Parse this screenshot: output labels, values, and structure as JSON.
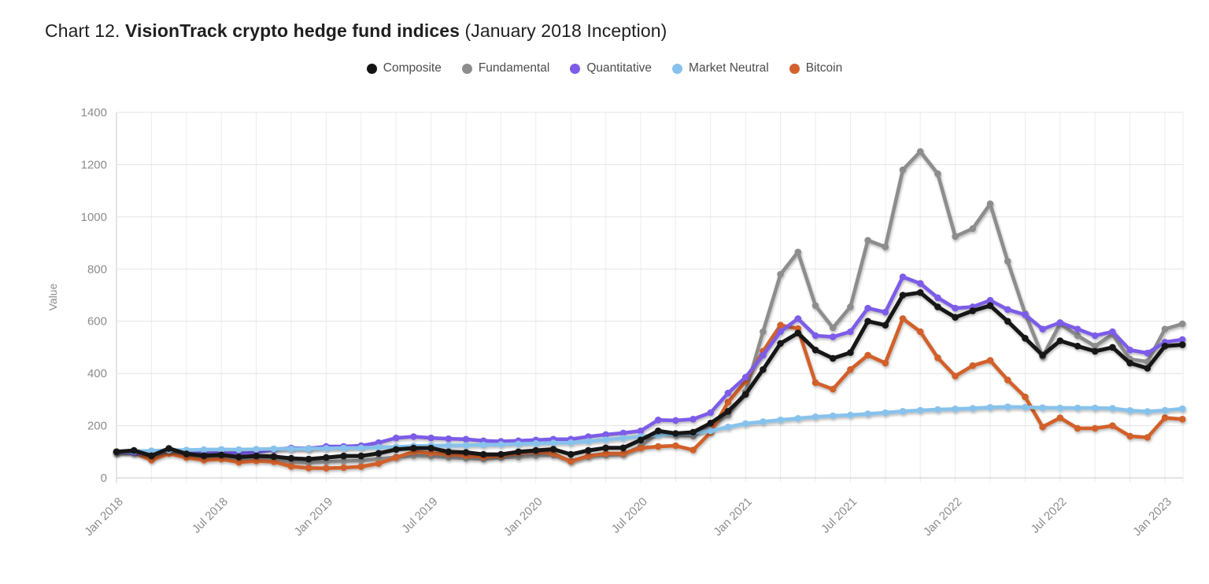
{
  "title": {
    "prefix": "Chart 12. ",
    "main": "VisionTrack crypto hedge fund indices",
    "suffix": " (January 2018 Inception)"
  },
  "chart_data": {
    "type": "line",
    "ylabel": "Value",
    "ylim": [
      0,
      1400
    ],
    "y_ticks": [
      0,
      200,
      400,
      600,
      800,
      1000,
      1200,
      1400
    ],
    "x_tick_labels": [
      "Jan 2018",
      "Jul 2018",
      "Jan 2019",
      "Jul 2019",
      "Jan 2020",
      "Jul 2020",
      "Jan 2021",
      "Jul 2021",
      "Jan 2022",
      "Jul 2022",
      "Jan 2023"
    ],
    "x_tick_every": 6,
    "grid": true,
    "legend_position": "top",
    "markers": true,
    "months": [
      "Jan 2018",
      "Feb 2018",
      "Mar 2018",
      "Apr 2018",
      "May 2018",
      "Jun 2018",
      "Jul 2018",
      "Aug 2018",
      "Sep 2018",
      "Oct 2018",
      "Nov 2018",
      "Dec 2018",
      "Jan 2019",
      "Feb 2019",
      "Mar 2019",
      "Apr 2019",
      "May 2019",
      "Jun 2019",
      "Jul 2019",
      "Aug 2019",
      "Sep 2019",
      "Oct 2019",
      "Nov 2019",
      "Dec 2019",
      "Jan 2020",
      "Feb 2020",
      "Mar 2020",
      "Apr 2020",
      "May 2020",
      "Jun 2020",
      "Jul 2020",
      "Aug 2020",
      "Sep 2020",
      "Oct 2020",
      "Nov 2020",
      "Dec 2020",
      "Jan 2021",
      "Feb 2021",
      "Mar 2021",
      "Apr 2021",
      "May 2021",
      "Jun 2021",
      "Jul 2021",
      "Aug 2021",
      "Sep 2021",
      "Oct 2021",
      "Nov 2021",
      "Dec 2021",
      "Jan 2022",
      "Feb 2022",
      "Mar 2022",
      "Apr 2022",
      "May 2022",
      "Jun 2022",
      "Jul 2022",
      "Aug 2022",
      "Sep 2022",
      "Oct 2022",
      "Nov 2022",
      "Dec 2022",
      "Jan 2023",
      "Feb 2023"
    ],
    "series": [
      {
        "name": "Composite",
        "color": "#141414",
        "values": [
          100,
          105,
          85,
          113,
          92,
          85,
          88,
          80,
          84,
          82,
          75,
          72,
          78,
          84,
          84,
          94,
          109,
          114,
          114,
          100,
          98,
          90,
          90,
          100,
          105,
          110,
          90,
          105,
          115,
          115,
          145,
          180,
          170,
          175,
          210,
          255,
          320,
          415,
          515,
          555,
          490,
          458,
          480,
          600,
          585,
          700,
          710,
          655,
          615,
          640,
          660,
          600,
          535,
          470,
          525,
          505,
          485,
          500,
          440,
          420,
          505,
          510
        ]
      },
      {
        "name": "Fundamental",
        "color": "#8d8d8d",
        "values": [
          100,
          102,
          78,
          108,
          88,
          80,
          83,
          74,
          78,
          72,
          60,
          58,
          62,
          64,
          66,
          72,
          80,
          85,
          83,
          78,
          75,
          72,
          78,
          80,
          85,
          88,
          65,
          82,
          88,
          90,
          120,
          175,
          165,
          160,
          200,
          240,
          330,
          560,
          780,
          865,
          660,
          575,
          655,
          910,
          885,
          1180,
          1250,
          1165,
          925,
          955,
          1050,
          830,
          630,
          465,
          590,
          545,
          505,
          550,
          455,
          445,
          570,
          590
        ]
      },
      {
        "name": "Quantitative",
        "color": "#7c5ce8",
        "values": [
          100,
          96,
          90,
          108,
          98,
          94,
          97,
          95,
          98,
          108,
          114,
          113,
          120,
          120,
          123,
          135,
          153,
          158,
          153,
          150,
          148,
          142,
          140,
          142,
          145,
          148,
          148,
          158,
          166,
          172,
          180,
          222,
          220,
          225,
          250,
          325,
          385,
          470,
          560,
          610,
          545,
          540,
          560,
          650,
          635,
          770,
          745,
          690,
          650,
          655,
          680,
          645,
          625,
          570,
          595,
          570,
          545,
          560,
          490,
          478,
          520,
          530
        ]
      },
      {
        "name": "Market Neutral",
        "color": "#87c2ec",
        "values": [
          100,
          102,
          104,
          106,
          107,
          108,
          109,
          108,
          110,
          111,
          111,
          112,
          113,
          114,
          115,
          117,
          119,
          122,
          123,
          124,
          125,
          126,
          128,
          130,
          132,
          134,
          135,
          140,
          146,
          152,
          158,
          165,
          168,
          172,
          180,
          195,
          208,
          215,
          222,
          228,
          234,
          238,
          241,
          245,
          250,
          255,
          259,
          262,
          264,
          266,
          270,
          272,
          271,
          269,
          268,
          268,
          268,
          266,
          258,
          254,
          259,
          265
        ]
      },
      {
        "name": "Bitcoin",
        "color": "#d2602a",
        "values": [
          100,
          97,
          68,
          93,
          78,
          68,
          72,
          60,
          65,
          62,
          44,
          38,
          37,
          39,
          43,
          55,
          78,
          100,
          95,
          90,
          85,
          80,
          85,
          95,
          100,
          93,
          63,
          84,
          93,
          93,
          114,
          120,
          123,
          107,
          174,
          290,
          370,
          485,
          585,
          572,
          365,
          340,
          415,
          470,
          440,
          610,
          560,
          460,
          390,
          430,
          450,
          375,
          310,
          195,
          230,
          190,
          190,
          200,
          160,
          155,
          230,
          225
        ]
      }
    ]
  }
}
